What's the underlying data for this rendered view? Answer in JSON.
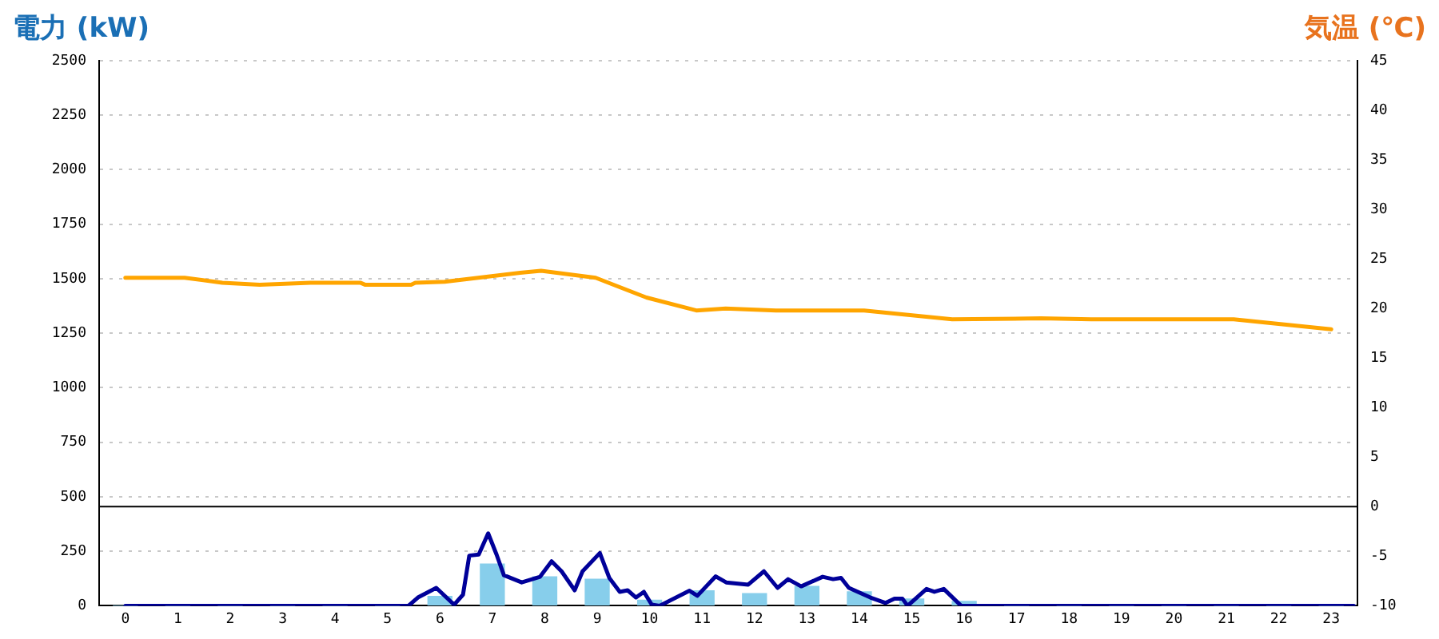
{
  "chart_data": {
    "type": "bar",
    "ylabel": "電力 (kW)",
    "y2label": "気温 (℃)",
    "xlim": [
      -0.5,
      23.5
    ],
    "xticks": [
      0,
      1,
      2,
      3,
      4,
      5,
      6,
      7,
      8,
      9,
      10,
      11,
      12,
      13,
      14,
      15,
      16,
      17,
      18,
      19,
      20,
      21,
      22,
      23
    ],
    "ylim": [
      0,
      2500
    ],
    "yticks": [
      0,
      250,
      500,
      750,
      1000,
      1250,
      1500,
      1750,
      2000,
      2250,
      2500
    ],
    "y2lim": [
      -10,
      45
    ],
    "y2ticks": [
      -10,
      -5,
      0,
      5,
      10,
      15,
      20,
      25,
      30,
      35,
      40,
      45
    ],
    "grid": "y",
    "ref_lines": [
      {
        "axis": "y2",
        "value": 0,
        "color": "#000000"
      }
    ],
    "series": [
      {
        "color": "#87ceeb",
        "x": [
          0,
          1,
          2,
          3,
          4,
          5,
          6,
          7,
          8,
          9,
          10,
          11,
          12,
          13,
          14,
          15,
          16,
          17,
          18,
          19,
          20,
          21,
          22,
          23
        ],
        "values": [
          0,
          0,
          0,
          0,
          0,
          0,
          43,
          191,
          133,
          122,
          26,
          69,
          56,
          89,
          64,
          31,
          20,
          0,
          0,
          0,
          0,
          0,
          0,
          0
        ]
      },
      {
        "type": "line",
        "color": "#000099",
        "x": [
          0,
          5.4,
          5.58,
          5.93,
          6.27,
          6.44,
          6.56,
          6.74,
          6.92,
          7.08,
          7.22,
          7.56,
          7.91,
          8.13,
          8.32,
          8.57,
          8.72,
          9.05,
          9.23,
          9.43,
          9.58,
          9.74,
          9.89,
          10.04,
          10.19,
          10.76,
          10.91,
          11.26,
          11.46,
          11.88,
          12.18,
          12.44,
          12.64,
          12.89,
          13.3,
          13.5,
          13.65,
          13.8,
          14.21,
          14.5,
          14.67,
          14.82,
          14.92,
          15.28,
          15.43,
          15.61,
          15.94,
          23.43
        ],
        "values": [
          0,
          0,
          38,
          82,
          5,
          51,
          230,
          235,
          332,
          235,
          140,
          107,
          133,
          204,
          158,
          71,
          158,
          242,
          128,
          64,
          71,
          38,
          64,
          5,
          0,
          69,
          46,
          135,
          107,
          97,
          158,
          82,
          122,
          89,
          133,
          122,
          128,
          82,
          38,
          13,
          33,
          33,
          0,
          77,
          64,
          77,
          0,
          0
        ]
      },
      {
        "type": "line",
        "axis": "y2",
        "color": "#ffa500",
        "x": [
          0,
          1.13,
          1.85,
          2.56,
          3.53,
          4.48,
          4.57,
          5.45,
          5.53,
          6.09,
          6.89,
          7.53,
          7.93,
          8.97,
          9.94,
          10.89,
          11.45,
          12.41,
          14.09,
          15.77,
          17.46,
          18.42,
          21.14,
          23.0
        ],
        "values": [
          23.1,
          23.1,
          22.6,
          22.4,
          22.6,
          22.6,
          22.4,
          22.4,
          22.6,
          22.7,
          23.2,
          23.6,
          23.8,
          23.1,
          21.1,
          19.8,
          20.0,
          19.8,
          19.8,
          18.9,
          19.0,
          18.9,
          18.9,
          17.9
        ]
      }
    ]
  }
}
